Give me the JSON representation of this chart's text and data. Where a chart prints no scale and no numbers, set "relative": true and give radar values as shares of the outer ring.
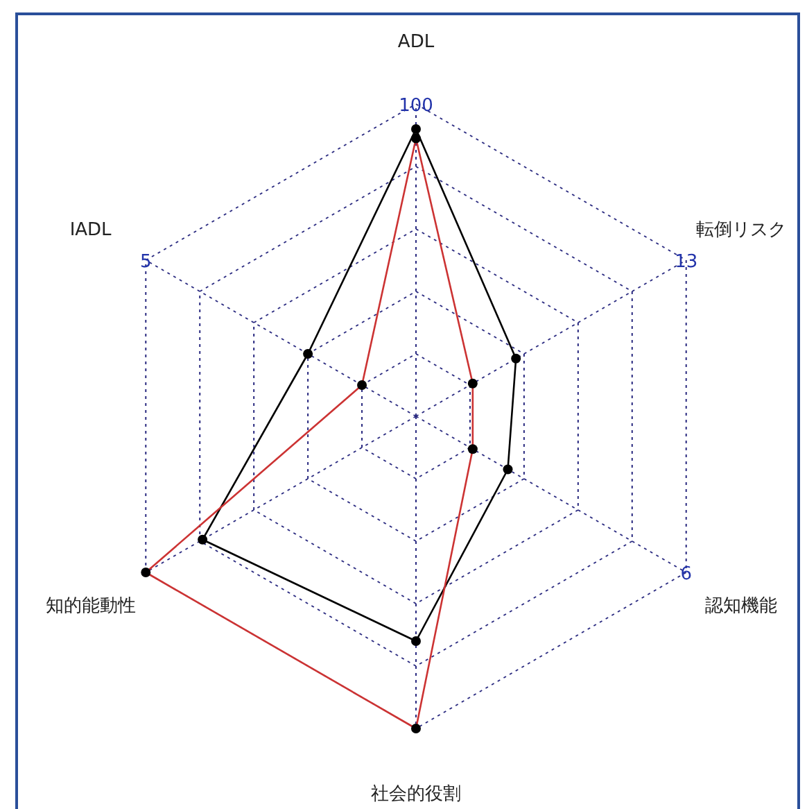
{
  "chart_data": {
    "type": "radar",
    "relative": true,
    "grid": true,
    "marker": "circle",
    "line_style": "solid",
    "categories": [
      "ADL",
      "転倒リスク",
      "認知機能",
      "社会的役割",
      "知的能動性",
      "IADL"
    ],
    "series": [
      {
        "color": "#000000",
        "values": [
          0.92,
          0.37,
          0.34,
          0.72,
          0.79,
          0.4
        ]
      },
      {
        "color": "#cc3333",
        "values": [
          0.89,
          0.21,
          0.21,
          1.0,
          1.0,
          0.2
        ]
      }
    ],
    "annotations": [
      "100",
      "13",
      "6",
      null,
      null,
      "5"
    ]
  }
}
